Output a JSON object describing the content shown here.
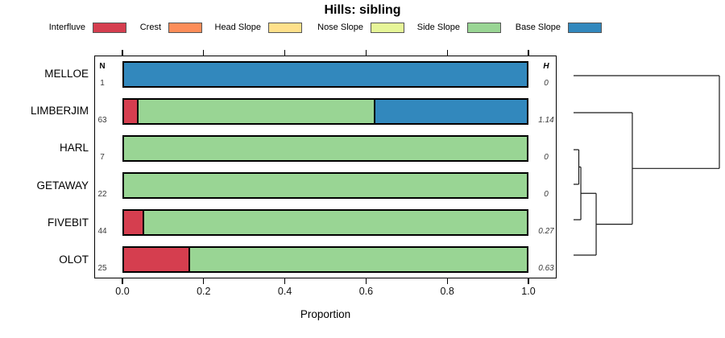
{
  "title": "Hills: sibling",
  "columns": {
    "n_header": "N",
    "h_header": "H"
  },
  "x_axis": {
    "ticks": [
      "0.0",
      "0.2",
      "0.4",
      "0.6",
      "0.8",
      "1.0"
    ],
    "label": "Proportion",
    "range": [
      0,
      1
    ]
  },
  "legend": {
    "items": [
      {
        "label": "Interfluve",
        "color": "#D53E4F"
      },
      {
        "label": "Crest",
        "color": "#FC8D59"
      },
      {
        "label": "Head Slope",
        "color": "#FEE08B"
      },
      {
        "label": "Nose Slope",
        "color": "#E6F598"
      },
      {
        "label": "Side Slope",
        "color": "#99D594"
      },
      {
        "label": "Base Slope",
        "color": "#3288BD"
      }
    ]
  },
  "chart_data": {
    "type": "bar",
    "orientation": "horizontal-stacked",
    "title": "Hills: sibling",
    "xlabel": "Proportion",
    "xlim": [
      0,
      1
    ],
    "grid": false,
    "legend_position": "top",
    "categories": [
      "MELLOE",
      "LIMBERJIM",
      "HARL",
      "GETAWAY",
      "FIVEBIT",
      "OLOT"
    ],
    "n_labels": [
      "1",
      "63",
      "7",
      "22",
      "44",
      "25"
    ],
    "h_labels": [
      "0",
      "1.14",
      "0",
      "0",
      "0.27",
      "0.63"
    ],
    "n_values": [
      1,
      63,
      7,
      22,
      44,
      25
    ],
    "h_values": [
      0,
      1.14,
      0,
      0,
      0.27,
      0.63
    ],
    "series": [
      {
        "name": "Interfluve",
        "values": [
          0,
          0.032,
          0,
          0,
          0.045,
          0.16
        ]
      },
      {
        "name": "Crest",
        "values": [
          0,
          0,
          0,
          0,
          0,
          0
        ]
      },
      {
        "name": "Head Slope",
        "values": [
          0,
          0,
          0,
          0,
          0,
          0
        ]
      },
      {
        "name": "Nose Slope",
        "values": [
          0,
          0,
          0,
          0,
          0,
          0
        ]
      },
      {
        "name": "Side Slope",
        "values": [
          0,
          0.588,
          1.0,
          1.0,
          0.955,
          0.84
        ]
      },
      {
        "name": "Base Slope",
        "values": [
          1.0,
          0.38,
          0,
          0,
          0,
          0
        ]
      }
    ],
    "dendrogram": {
      "side": "right",
      "leaves": [
        "MELLOE",
        "LIMBERJIM",
        "HARL",
        "GETAWAY",
        "FIVEBIT",
        "OLOT"
      ],
      "merges": [
        {
          "a": "HARL",
          "b": "GETAWAY",
          "height": 0.036
        },
        {
          "a": "merge-0",
          "b": "FIVEBIT",
          "height": 0.05
        },
        {
          "a": "merge-1",
          "b": "OLOT",
          "height": 0.155
        },
        {
          "a": "LIMBERJIM",
          "b": "merge-2",
          "height": 0.403
        },
        {
          "a": "MELLOE",
          "b": "merge-3",
          "height": 1.0
        }
      ]
    }
  }
}
